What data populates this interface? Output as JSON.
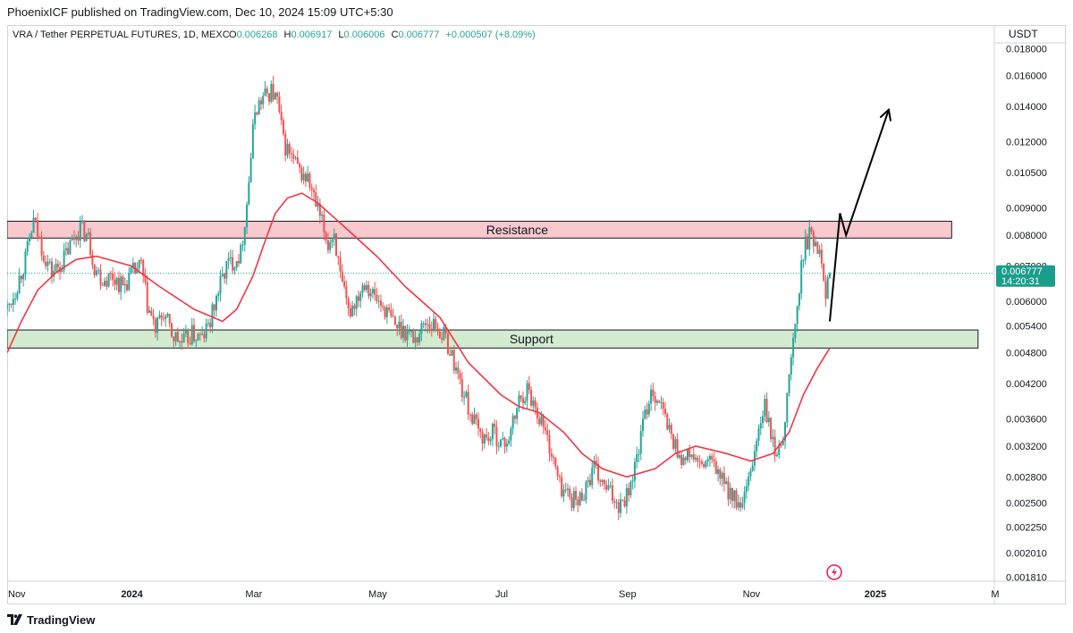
{
  "header": {
    "published_line": "PhoenixICF published on TradingView.com, Dec 10, 2024 15:09 UTC+5:30"
  },
  "legend": {
    "symbol": "VRA / Tether PERPETUAL FUTURES, 1D, MEXC",
    "open_label": "O",
    "open": "0.006268",
    "high_label": "H",
    "high": "0.006917",
    "low_label": "L",
    "low": "0.006006",
    "close_label": "C",
    "close": "0.006777",
    "change": "+0.000507 (+8.09%)"
  },
  "price_axis": {
    "currency": "USDT",
    "current_price": "0.006777",
    "countdown": "14:20:31"
  },
  "footer": {
    "brand": "TradingView"
  },
  "colors": {
    "up": "#26a69a",
    "down": "#ef5350",
    "ma": "#f23645",
    "resistance_fill": "#f8c9cd",
    "support_fill": "#d3ebcf",
    "price_tag": "#1b9d8b",
    "text": "#131722",
    "muted": "#787b86"
  },
  "chart_data": {
    "type": "candlestick",
    "title": "VRA / Tether PERPETUAL FUTURES, 1D, MEXC",
    "y_scale": "log",
    "ylim": [
      0.00178,
      0.0183
    ],
    "xlim": [
      "2023-11-01",
      "2025-03-01"
    ],
    "y_ticks": [
      "0.018000",
      "0.016000",
      "0.014000",
      "0.012000",
      "0.010500",
      "0.009000",
      "0.008000",
      "0.007000",
      "0.006000",
      "0.005400",
      "0.004800",
      "0.004200",
      "0.003600",
      "0.003200",
      "0.002800",
      "0.002500",
      "0.002250",
      "0.002010",
      "0.001810"
    ],
    "x_ticks": [
      {
        "date": "2023-11-01",
        "label": "Nov"
      },
      {
        "date": "2024-01-01",
        "label": "2024"
      },
      {
        "date": "2024-03-01",
        "label": "Mar"
      },
      {
        "date": "2024-05-01",
        "label": "May"
      },
      {
        "date": "2024-07-01",
        "label": "Jul"
      },
      {
        "date": "2024-09-01",
        "label": "Sep"
      },
      {
        "date": "2024-11-01",
        "label": "Nov"
      },
      {
        "date": "2025-01-01",
        "label": "2025"
      },
      {
        "date": "2025-03-01",
        "label": "M"
      }
    ],
    "zones": [
      {
        "name": "Resistance",
        "from": 0.0079,
        "to": 0.0085,
        "x_start": "2023-11-01",
        "x_end": "2025-02-08"
      },
      {
        "name": "Support",
        "from": 0.0049,
        "to": 0.0053,
        "x_start": "2023-11-01",
        "x_end": "2025-02-21"
      }
    ],
    "close_path": [
      [
        "2023-11-01",
        0.0058
      ],
      [
        "2023-11-05",
        0.0063
      ],
      [
        "2023-11-10",
        0.0072
      ],
      [
        "2023-11-14",
        0.0085
      ],
      [
        "2023-11-19",
        0.0074
      ],
      [
        "2023-11-23",
        0.0068
      ],
      [
        "2023-11-28",
        0.0071
      ],
      [
        "2023-12-03",
        0.0078
      ],
      [
        "2023-12-07",
        0.0083
      ],
      [
        "2023-12-11",
        0.0079
      ],
      [
        "2023-12-14",
        0.007
      ],
      [
        "2023-12-18",
        0.0066
      ],
      [
        "2023-12-23",
        0.0067
      ],
      [
        "2023-12-28",
        0.0064
      ],
      [
        "2024-01-02",
        0.0068
      ],
      [
        "2024-01-06",
        0.007
      ],
      [
        "2024-01-09",
        0.0059
      ],
      [
        "2024-01-13",
        0.0053
      ],
      [
        "2024-01-17",
        0.0057
      ],
      [
        "2024-01-21",
        0.0052
      ],
      [
        "2024-01-26",
        0.005
      ],
      [
        "2024-01-31",
        0.0052
      ],
      [
        "2024-02-05",
        0.0051
      ],
      [
        "2024-02-09",
        0.0055
      ],
      [
        "2024-02-13",
        0.0063
      ],
      [
        "2024-02-17",
        0.007
      ],
      [
        "2024-02-21",
        0.0072
      ],
      [
        "2024-02-24",
        0.0074
      ],
      [
        "2024-02-27",
        0.0092
      ],
      [
        "2024-03-02",
        0.0138
      ],
      [
        "2024-03-06",
        0.0145
      ],
      [
        "2024-03-10",
        0.015
      ],
      [
        "2024-03-13",
        0.0143
      ],
      [
        "2024-03-16",
        0.012
      ],
      [
        "2024-03-20",
        0.0112
      ],
      [
        "2024-03-24",
        0.0105
      ],
      [
        "2024-03-28",
        0.0102
      ],
      [
        "2024-04-01",
        0.0091
      ],
      [
        "2024-04-04",
        0.0084
      ],
      [
        "2024-04-07",
        0.0077
      ],
      [
        "2024-04-10",
        0.0081
      ],
      [
        "2024-04-13",
        0.0066
      ],
      [
        "2024-04-17",
        0.0057
      ],
      [
        "2024-04-21",
        0.0061
      ],
      [
        "2024-04-25",
        0.0066
      ],
      [
        "2024-04-30",
        0.0061
      ],
      [
        "2024-05-05",
        0.0058
      ],
      [
        "2024-05-10",
        0.0054
      ],
      [
        "2024-05-15",
        0.0053
      ],
      [
        "2024-05-20",
        0.0051
      ],
      [
        "2024-05-25",
        0.0055
      ],
      [
        "2024-05-30",
        0.0054
      ],
      [
        "2024-06-04",
        0.0051
      ],
      [
        "2024-06-08",
        0.0046
      ],
      [
        "2024-06-12",
        0.0041
      ],
      [
        "2024-06-16",
        0.0037
      ],
      [
        "2024-06-20",
        0.0034
      ],
      [
        "2024-06-24",
        0.0033
      ],
      [
        "2024-06-28",
        0.0034
      ],
      [
        "2024-07-02",
        0.0032
      ],
      [
        "2024-07-06",
        0.0034
      ],
      [
        "2024-07-10",
        0.0039
      ],
      [
        "2024-07-14",
        0.0041
      ],
      [
        "2024-07-18",
        0.0038
      ],
      [
        "2024-07-22",
        0.0035
      ],
      [
        "2024-07-26",
        0.0031
      ],
      [
        "2024-07-30",
        0.0027
      ],
      [
        "2024-08-03",
        0.0026
      ],
      [
        "2024-08-08",
        0.0025
      ],
      [
        "2024-08-12",
        0.0027
      ],
      [
        "2024-08-16",
        0.0029
      ],
      [
        "2024-08-20",
        0.0027
      ],
      [
        "2024-08-24",
        0.0026
      ],
      [
        "2024-08-28",
        0.0025
      ],
      [
        "2024-09-01",
        0.0026
      ],
      [
        "2024-09-05",
        0.0029
      ],
      [
        "2024-09-09",
        0.0035
      ],
      [
        "2024-09-13",
        0.0041
      ],
      [
        "2024-09-17",
        0.0039
      ],
      [
        "2024-09-21",
        0.0035
      ],
      [
        "2024-09-25",
        0.0032
      ],
      [
        "2024-09-29",
        0.003
      ],
      [
        "2024-10-03",
        0.0031
      ],
      [
        "2024-10-07",
        0.0029
      ],
      [
        "2024-10-11",
        0.003
      ],
      [
        "2024-10-15",
        0.0029
      ],
      [
        "2024-10-19",
        0.0027
      ],
      [
        "2024-10-23",
        0.0026
      ],
      [
        "2024-10-27",
        0.0024
      ],
      [
        "2024-10-31",
        0.0027
      ],
      [
        "2024-11-04",
        0.0033
      ],
      [
        "2024-11-08",
        0.0038
      ],
      [
        "2024-11-12",
        0.0032
      ],
      [
        "2024-11-15",
        0.0031
      ],
      [
        "2024-11-18",
        0.0036
      ],
      [
        "2024-11-21",
        0.0047
      ],
      [
        "2024-11-24",
        0.0058
      ],
      [
        "2024-11-27",
        0.0075
      ],
      [
        "2024-11-30",
        0.008
      ],
      [
        "2024-12-03",
        0.0078
      ],
      [
        "2024-12-06",
        0.0074
      ],
      [
        "2024-12-08",
        0.0062
      ],
      [
        "2024-12-10",
        0.006777
      ]
    ],
    "moving_average": [
      [
        "2023-11-01",
        0.0048
      ],
      [
        "2023-11-08",
        0.0055
      ],
      [
        "2023-11-16",
        0.0063
      ],
      [
        "2023-11-25",
        0.0068
      ],
      [
        "2023-12-05",
        0.0072
      ],
      [
        "2023-12-15",
        0.0073
      ],
      [
        "2024-01-01",
        0.007
      ],
      [
        "2024-01-15",
        0.0064
      ],
      [
        "2024-02-01",
        0.0058
      ],
      [
        "2024-02-15",
        0.0055
      ],
      [
        "2024-02-22",
        0.0058
      ],
      [
        "2024-03-01",
        0.0067
      ],
      [
        "2024-03-07",
        0.0078
      ],
      [
        "2024-03-12",
        0.0088
      ],
      [
        "2024-03-18",
        0.0094
      ],
      [
        "2024-03-25",
        0.0096
      ],
      [
        "2024-04-02",
        0.0092
      ],
      [
        "2024-04-15",
        0.0083
      ],
      [
        "2024-05-01",
        0.0073
      ],
      [
        "2024-05-15",
        0.0064
      ],
      [
        "2024-06-01",
        0.0056
      ],
      [
        "2024-06-15",
        0.0046
      ],
      [
        "2024-07-01",
        0.004
      ],
      [
        "2024-07-10",
        0.0038
      ],
      [
        "2024-07-20",
        0.0037
      ],
      [
        "2024-08-01",
        0.0034
      ],
      [
        "2024-08-10",
        0.0031
      ],
      [
        "2024-08-20",
        0.0029
      ],
      [
        "2024-09-01",
        0.0028
      ],
      [
        "2024-09-15",
        0.0029
      ],
      [
        "2024-09-25",
        0.0031
      ],
      [
        "2024-10-05",
        0.0032
      ],
      [
        "2024-10-20",
        0.0031
      ],
      [
        "2024-11-01",
        0.003
      ],
      [
        "2024-11-12",
        0.0031
      ],
      [
        "2024-11-20",
        0.0034
      ],
      [
        "2024-11-27",
        0.004
      ],
      [
        "2024-12-04",
        0.0045
      ],
      [
        "2024-12-10",
        0.0049
      ]
    ],
    "projection": [
      [
        "2024-12-10",
        0.0055
      ],
      [
        "2024-12-15",
        0.0088
      ],
      [
        "2024-12-18",
        0.008
      ],
      [
        "2025-01-08",
        0.0138
      ]
    ],
    "lines": [
      {
        "name": "Resistance",
        "value": 0.0082
      },
      {
        "name": "Support",
        "value": 0.0051
      }
    ],
    "last_price": 0.006777
  }
}
